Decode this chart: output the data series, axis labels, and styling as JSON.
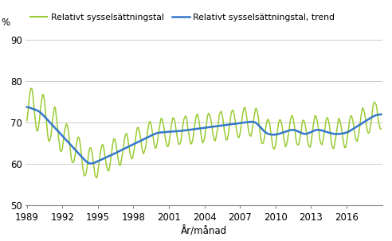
{
  "ylabel": "%",
  "xlabel": "År/månad",
  "legend1": "Relativt sysselsättningstal",
  "legend2": "Relativt sysselsättningstal, trend",
  "color1": "#99cc33",
  "color2": "#3377cc",
  "ylim": [
    50,
    92
  ],
  "yticks": [
    50,
    60,
    70,
    80,
    90
  ],
  "xticks": [
    1989,
    1992,
    1995,
    1998,
    2001,
    2004,
    2007,
    2010,
    2013,
    2016
  ],
  "xlim_start": 1988.9,
  "xlim_end": 2019.0,
  "start_year": 1989,
  "start_month": 1,
  "end_year": 2018,
  "end_month": 12,
  "background_color": "#ffffff",
  "grid_color": "#cccccc"
}
